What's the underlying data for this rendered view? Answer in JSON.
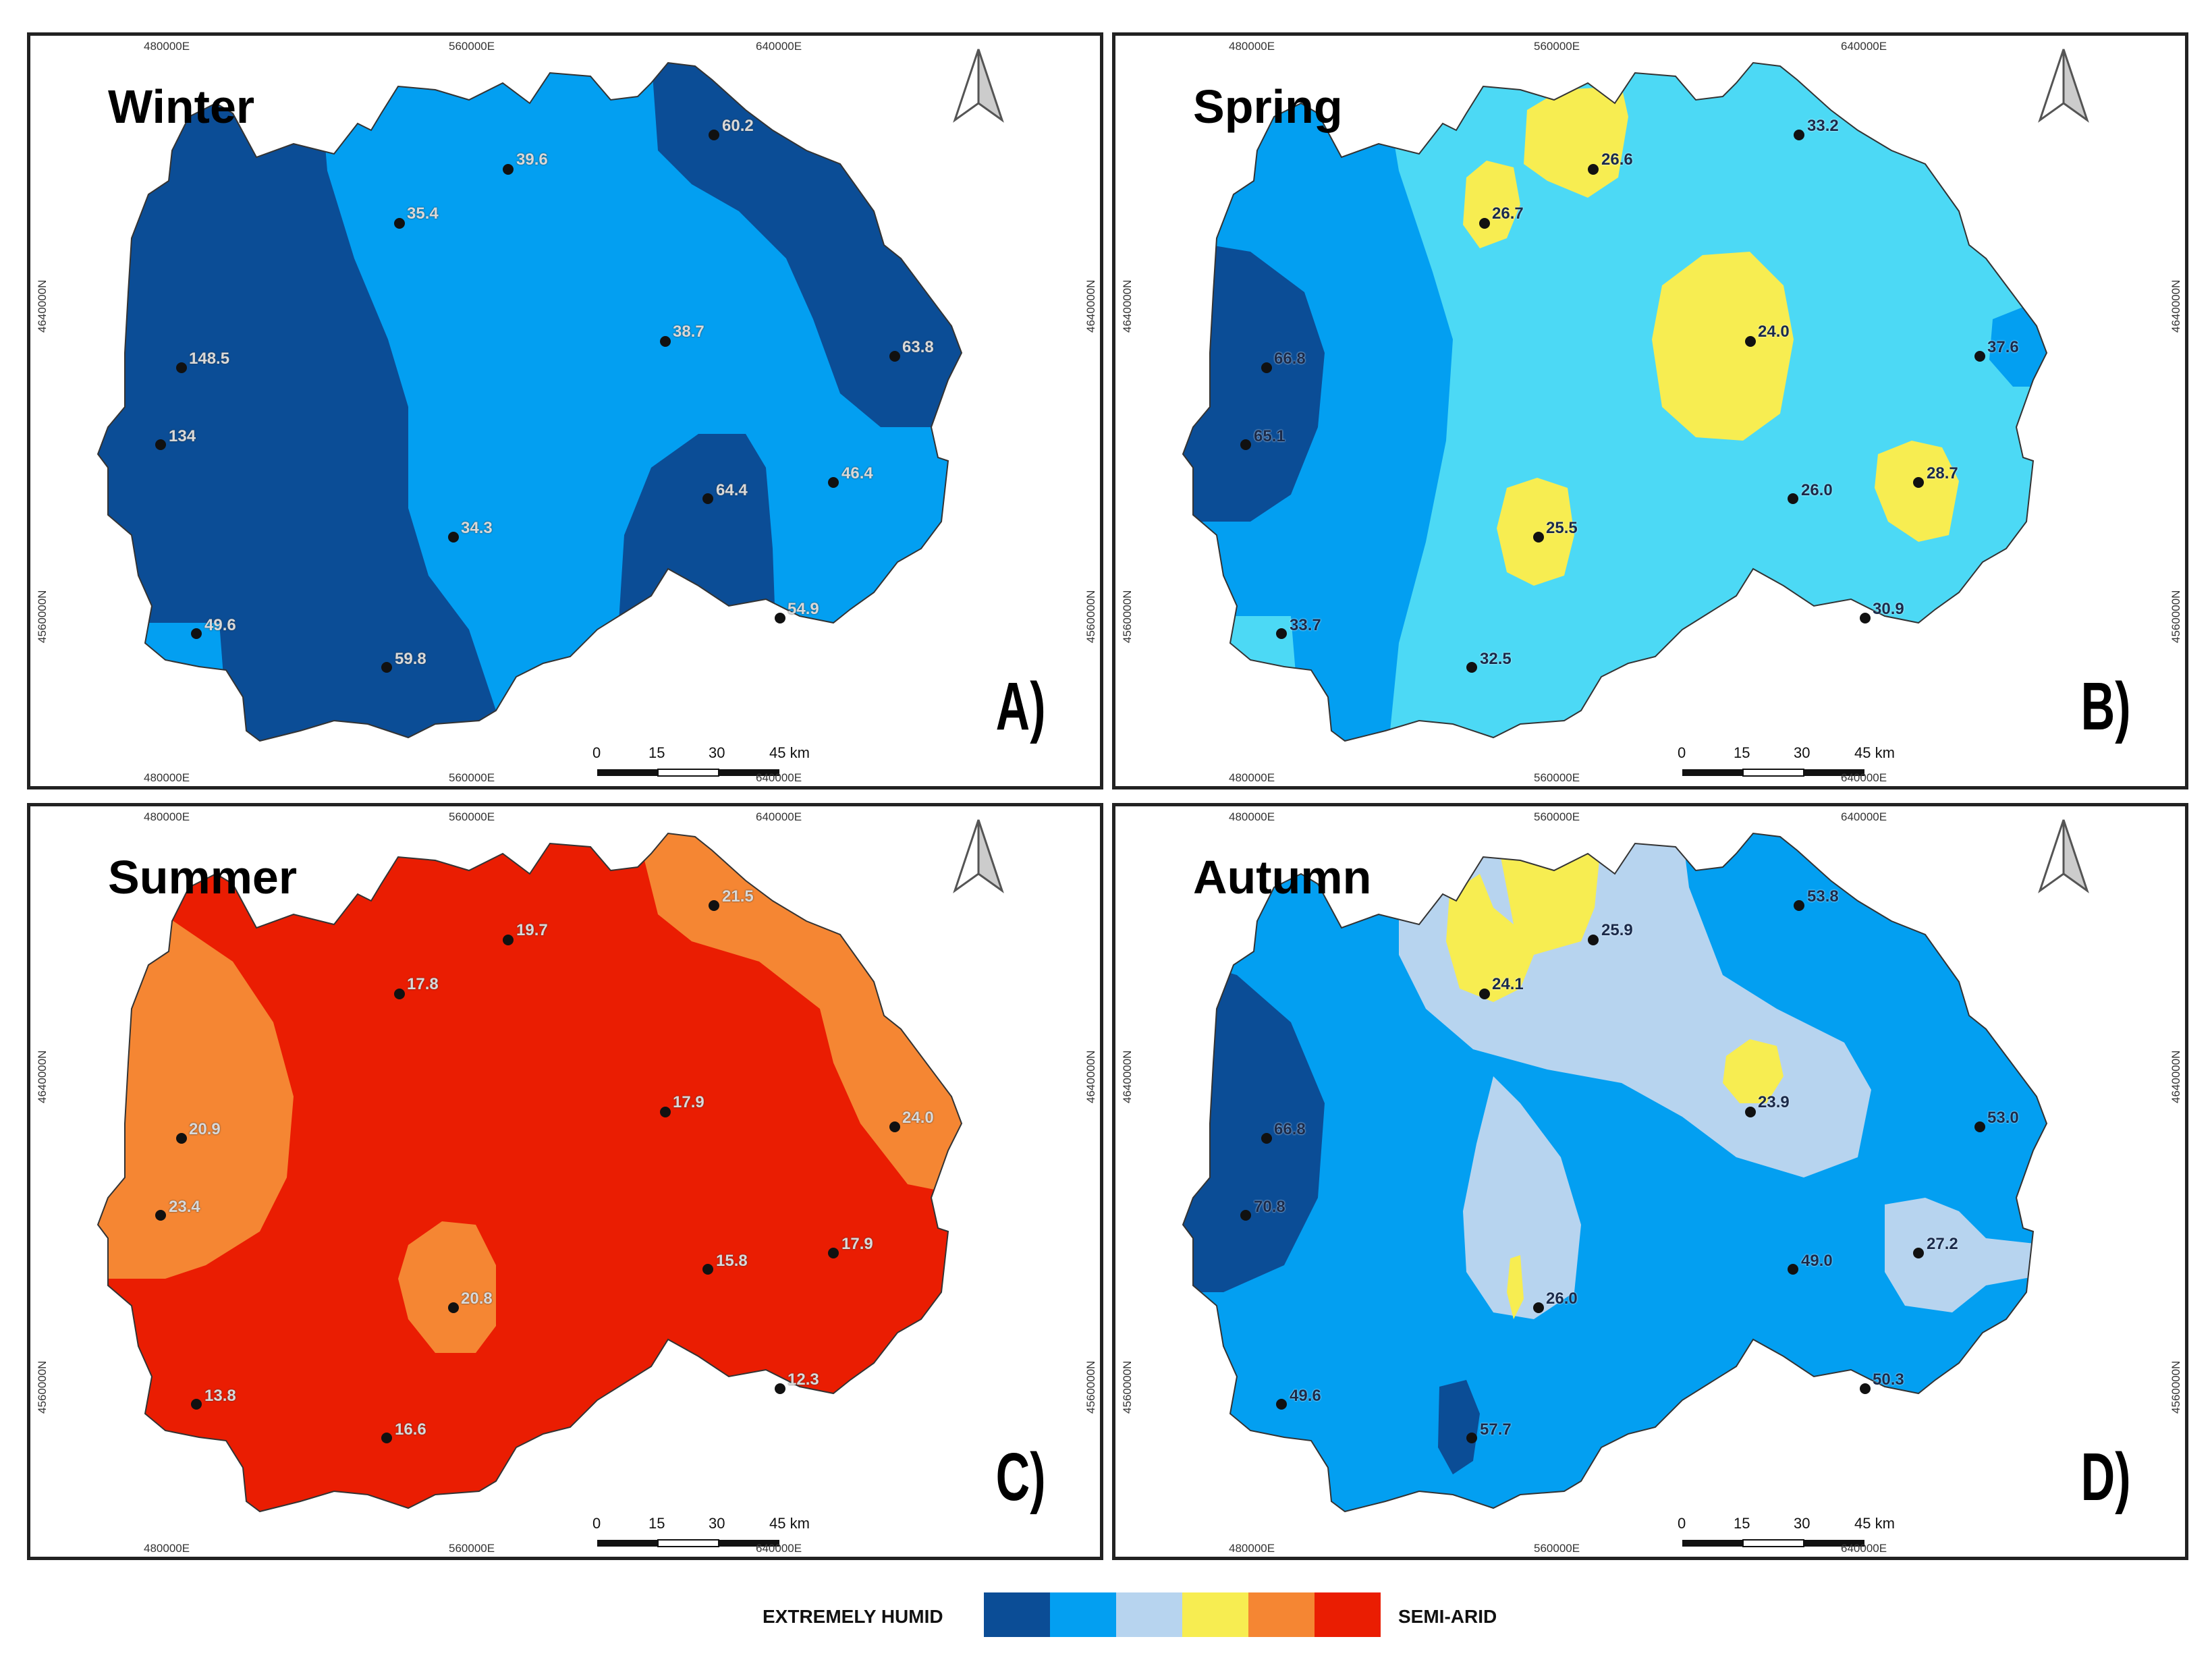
{
  "colors": {
    "extremely_humid": "#0b4d96",
    "very_humid": "#039ff1",
    "humid": "#b7d4ef",
    "semi_humid": "#f7ed51",
    "subhumid": "#f58633",
    "semi_arid": "#ea1d02",
    "light_blue": "#4cd9f5"
  },
  "coords": {
    "x_ticks": [
      "480000E",
      "560000E",
      "640000E"
    ],
    "y_ticks": [
      "4640000N",
      "4560000N"
    ]
  },
  "scale_bar": {
    "labels": [
      "0",
      "15",
      "30",
      "45 km"
    ]
  },
  "legend": {
    "left_label": "EXTREMELY HUMID",
    "right_label": "SEMI-ARID",
    "swatches": [
      "#0b4d96",
      "#039ff1",
      "#b7d4ef",
      "#f7ed51",
      "#f58633",
      "#ea1d02"
    ]
  },
  "panels": [
    {
      "season": "Winter",
      "letter": "A)",
      "values": [
        "60.2",
        "39.6",
        "35.4",
        "38.7",
        "63.8",
        "148.5",
        "134",
        "64.4",
        "46.4",
        "34.3",
        "54.9",
        "49.6",
        "59.8"
      ]
    },
    {
      "season": "Spring",
      "letter": "B)",
      "values": [
        "33.2",
        "26.6",
        "26.7",
        "24.0",
        "37.6",
        "66.8",
        "65.1",
        "26.0",
        "28.7",
        "25.5",
        "30.9",
        "33.7",
        "32.5"
      ]
    },
    {
      "season": "Summer",
      "letter": "C)",
      "values": [
        "21.5",
        "19.7",
        "17.8",
        "17.9",
        "24.0",
        "20.9",
        "23.4",
        "15.8",
        "17.9",
        "20.8",
        "12.3",
        "13.8",
        "16.6"
      ]
    },
    {
      "season": "Autumn",
      "letter": "D)",
      "values": [
        "53.8",
        "25.9",
        "24.1",
        "23.9",
        "53.0",
        "66.8",
        "70.8",
        "49.0",
        "27.2",
        "26.0",
        "50.3",
        "49.6",
        "57.7"
      ]
    }
  ]
}
